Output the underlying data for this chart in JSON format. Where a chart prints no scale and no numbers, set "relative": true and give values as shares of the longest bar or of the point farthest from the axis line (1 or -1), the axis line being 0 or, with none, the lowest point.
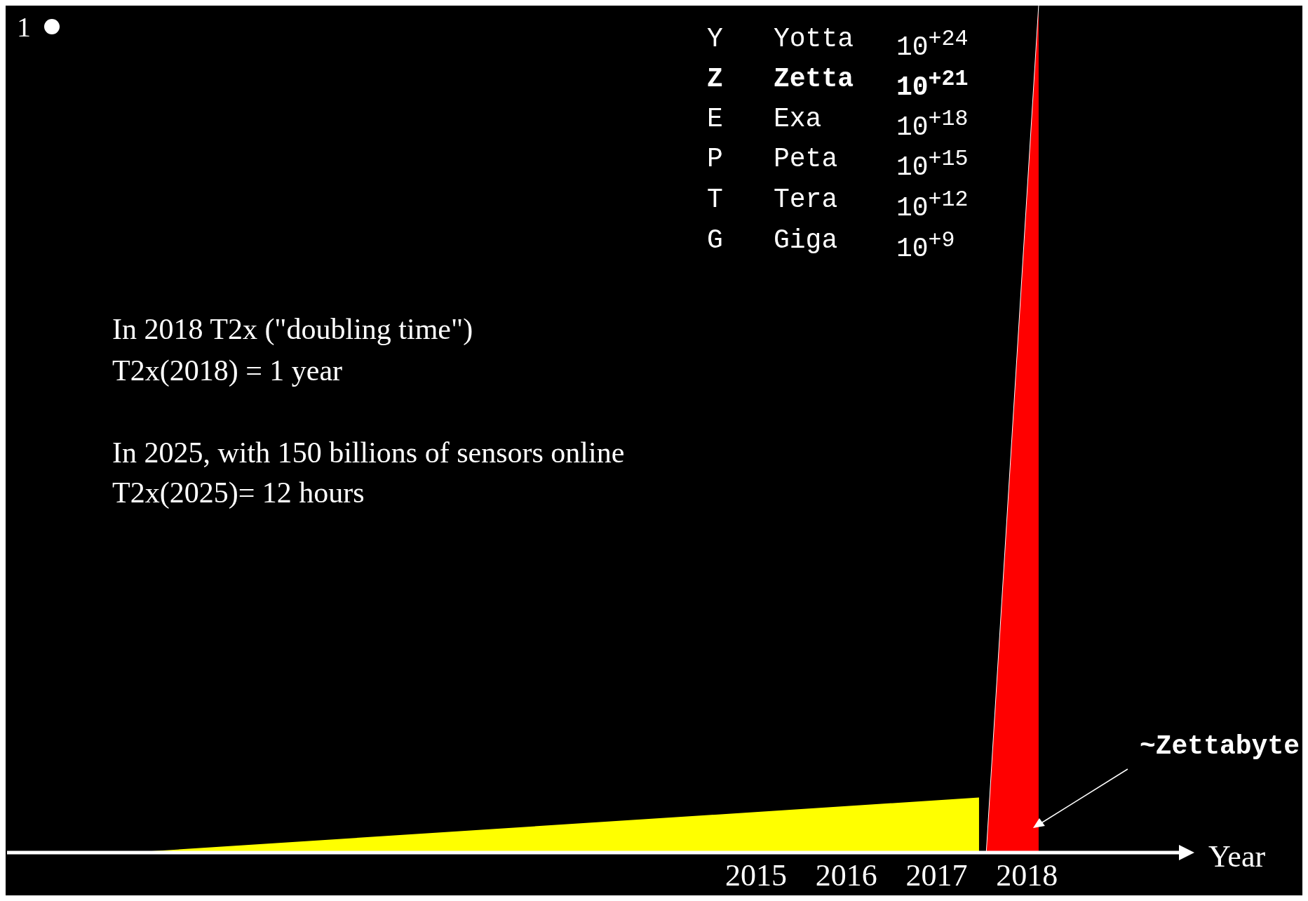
{
  "chart_data": {
    "type": "area",
    "relative": true,
    "xlabel": "Year",
    "xlim": [
      2007.2,
      2019.7
    ],
    "xticks": [
      2015,
      2016,
      2017,
      2018
    ],
    "series": [
      {
        "color": "#ffff00",
        "x": [
          2008.06,
          2017.47
        ],
        "values": [
          0,
          0.065
        ]
      },
      {
        "color": "#ff0000",
        "x": [
          2017.55,
          2018.13
        ],
        "values": [
          0,
          1
        ]
      }
    ],
    "annotations": [
      "Y Yotta 10$^{+24}$",
      "Z Zetta 10$^{+21}$",
      "E Exa 10$^{+18}$",
      "P Peta 10$^{+15}$",
      "T Tera 10$^{+12}$",
      "G Giga 10$^{+9}$",
      "In 2018 T2x (\"doubling time\")",
      "T2x(2018) = 1 year",
      "In 2025, with 150 billions of sensors online",
      "T2x(2025)= 12 hours",
      "1",
      "~Zettabyte"
    ]
  }
}
